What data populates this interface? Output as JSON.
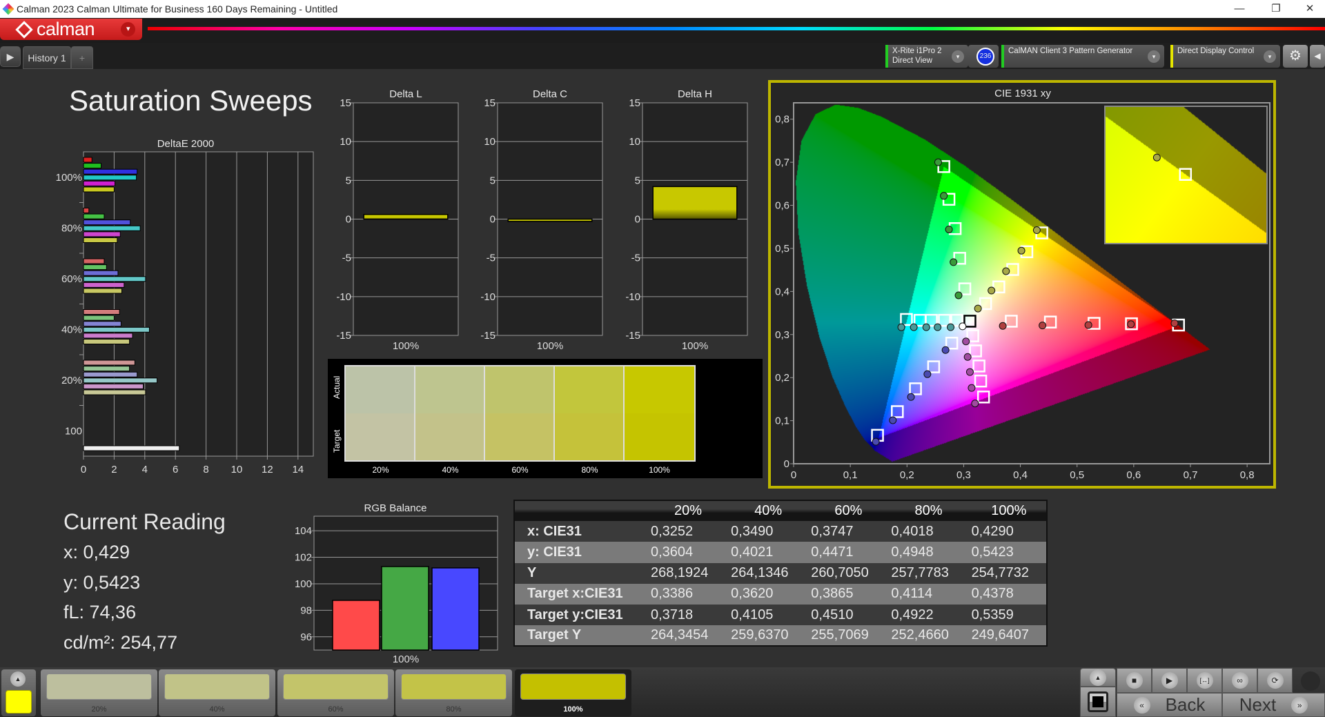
{
  "window": {
    "title": "Calman 2023 Calman Ultimate for Business 160 Days Remaining  - Untitled",
    "minimize": "—",
    "maximize": "❐",
    "close": "✕"
  },
  "header": {
    "brand": "calman",
    "menu_icon": "▾"
  },
  "tabs": {
    "play_icon": "▶",
    "items": [
      {
        "label": "History 1"
      }
    ],
    "add_label": "+"
  },
  "devices": {
    "meter": {
      "line1": "X-Rite i1Pro 2",
      "line2": "Direct View",
      "status_color": "#22cc22"
    },
    "meter_badge": "236",
    "generator": {
      "line1": "CalMAN Client 3 Pattern Generator",
      "status_color": "#22cc22"
    },
    "display": {
      "line1": "Direct Display Control",
      "status_color": "#e6e600"
    },
    "settings_icon": "⚙",
    "collapse_icon": "◀",
    "dropdown_icon": "▾"
  },
  "page_title": "Saturation Sweeps",
  "swatch_panel": {
    "actual_label": "Actual",
    "target_label": "Target",
    "items": [
      {
        "label": "20%",
        "actual": "#bcc3a8",
        "target": "#c3c3a4"
      },
      {
        "label": "40%",
        "actual": "#bec58f",
        "target": "#c3c28a"
      },
      {
        "label": "60%",
        "actual": "#bfc46c",
        "target": "#c5c264"
      },
      {
        "label": "80%",
        "actual": "#c2c63c",
        "target": "#c5c23a"
      },
      {
        "label": "100%",
        "actual": "#c7c800",
        "target": "#c5c400"
      }
    ]
  },
  "current_reading": {
    "title": "Current Reading",
    "lines": [
      "x: 0,429",
      "y: 0,5423",
      "fL: 74,36",
      "cd/m²: 254,77"
    ]
  },
  "table": {
    "columns": [
      "20%",
      "40%",
      "60%",
      "80%",
      "100%"
    ],
    "rows": [
      {
        "label": "x: CIE31",
        "values": [
          "0,3252",
          "0,3490",
          "0,3747",
          "0,4018",
          "0,4290"
        ]
      },
      {
        "label": "y: CIE31",
        "values": [
          "0,3604",
          "0,4021",
          "0,4471",
          "0,4948",
          "0,5423"
        ]
      },
      {
        "label": "Y",
        "values": [
          "268,1924",
          "264,1346",
          "260,7050",
          "257,7783",
          "254,7732"
        ]
      },
      {
        "label": "Target x:CIE31",
        "values": [
          "0,3386",
          "0,3620",
          "0,3865",
          "0,4114",
          "0,4378"
        ]
      },
      {
        "label": "Target y:CIE31",
        "values": [
          "0,3718",
          "0,4105",
          "0,4510",
          "0,4922",
          "0,5359"
        ]
      },
      {
        "label": "Target Y",
        "values": [
          "264,3454",
          "259,6370",
          "255,7069",
          "252,4660",
          "249,6407"
        ]
      }
    ]
  },
  "bottom": {
    "up_icon": "▲",
    "current_color": "#ffff00",
    "swatches": [
      {
        "label": "20%",
        "color": "#bdbf9e"
      },
      {
        "label": "40%",
        "color": "#c1c388"
      },
      {
        "label": "60%",
        "color": "#c3c46a"
      },
      {
        "label": "80%",
        "color": "#c3c348"
      },
      {
        "label": "100%",
        "color": "#c4c000",
        "selected": true
      }
    ],
    "controls": {
      "stop": "■",
      "play": "▶",
      "range": "[↔]",
      "loop": "∞",
      "refresh": "⟳",
      "back": "Back",
      "next": "Next",
      "back_icon": "«",
      "next_icon": "»"
    }
  },
  "chart_data": [
    {
      "id": "deltae",
      "type": "bar",
      "orientation": "horizontal",
      "title": "DeltaE 2000",
      "xlim": [
        0,
        15
      ],
      "xticks": [
        0,
        2,
        4,
        6,
        8,
        10,
        12,
        14
      ],
      "grid": true,
      "series_colors": [
        "#e02020",
        "#20c020",
        "#3030e0",
        "#20c8c8",
        "#d020d0",
        "#c8c820"
      ],
      "groups": [
        {
          "label": "100%",
          "values": [
            0.55,
            1.15,
            3.5,
            3.45,
            2.05,
            2.0
          ]
        },
        {
          "label": "80%",
          "values": [
            0.35,
            1.35,
            3.05,
            3.7,
            2.4,
            2.2
          ]
        },
        {
          "label": "60%",
          "values": [
            1.35,
            1.5,
            2.25,
            4.05,
            2.65,
            2.5
          ]
        },
        {
          "label": "40%",
          "values": [
            2.35,
            2.0,
            2.45,
            4.3,
            3.2,
            3.0
          ]
        },
        {
          "label": "20%",
          "values": [
            3.35,
            3.0,
            3.5,
            4.8,
            3.9,
            4.05
          ]
        },
        {
          "label": "100",
          "values": [
            6.25
          ],
          "color": "#f0f0f0"
        }
      ]
    },
    {
      "id": "deltaL",
      "type": "bar",
      "title": "Delta L",
      "categories": [
        "100%"
      ],
      "values": [
        0.6
      ],
      "ylim": [
        -15,
        15
      ],
      "yticks": [
        15,
        10,
        5,
        0,
        -5,
        -10,
        -15
      ],
      "color": "#c8c800"
    },
    {
      "id": "deltaC",
      "type": "bar",
      "title": "Delta C",
      "categories": [
        "100%"
      ],
      "values": [
        -0.3
      ],
      "ylim": [
        -15,
        15
      ],
      "yticks": [
        15,
        10,
        5,
        0,
        -5,
        -10,
        -15
      ],
      "color": "#c8c800"
    },
    {
      "id": "deltaH",
      "type": "bar",
      "title": "Delta H",
      "categories": [
        "100%"
      ],
      "values": [
        4.2
      ],
      "ylim": [
        -15,
        15
      ],
      "yticks": [
        15,
        10,
        5,
        0,
        -5,
        -10,
        -15
      ],
      "color": "#c8c800"
    },
    {
      "id": "rgb",
      "type": "bar",
      "title": "RGB Balance",
      "categories": [
        "100%"
      ],
      "series": [
        {
          "color": "#ff4a4a",
          "value": 98.75
        },
        {
          "color": "#45a845",
          "value": 101.3
        },
        {
          "color": "#4848ff",
          "value": 101.2
        }
      ],
      "ylim": [
        95,
        105.1
      ],
      "yticks": [
        96,
        98,
        100,
        102,
        104
      ]
    },
    {
      "id": "cie",
      "type": "scatter",
      "title": "CIE 1931 xy",
      "xlim": [
        0,
        0.84
      ],
      "ylim": [
        0,
        0.838
      ],
      "xticks": [
        {
          "v": 0,
          "l": "0"
        },
        {
          "v": 0.1,
          "l": "0,1"
        },
        {
          "v": 0.2,
          "l": "0,2"
        },
        {
          "v": 0.3,
          "l": "0,3"
        },
        {
          "v": 0.4,
          "l": "0,4"
        },
        {
          "v": 0.5,
          "l": "0,5"
        },
        {
          "v": 0.6,
          "l": "0,6"
        },
        {
          "v": 0.7,
          "l": "0,7"
        },
        {
          "v": 0.8,
          "l": "0,8"
        }
      ],
      "yticks": [
        {
          "v": 0,
          "l": "0"
        },
        {
          "v": 0.1,
          "l": "0,1"
        },
        {
          "v": 0.2,
          "l": "0,2"
        },
        {
          "v": 0.3,
          "l": "0,3"
        },
        {
          "v": 0.4,
          "l": "0,4"
        },
        {
          "v": 0.5,
          "l": "0,5"
        },
        {
          "v": 0.6,
          "l": "0,6"
        },
        {
          "v": 0.7,
          "l": "0,7"
        },
        {
          "v": 0.8,
          "l": "0,8"
        }
      ],
      "gamut_triangle": [
        [
          0.68,
          0.32
        ],
        [
          0.265,
          0.69
        ],
        [
          0.15,
          0.06
        ]
      ],
      "series": [
        {
          "color": "#3a9a3a",
          "measured": [
            [
              0.291,
              0.391
            ],
            [
              0.282,
              0.468
            ],
            [
              0.274,
              0.544
            ],
            [
              0.265,
              0.622
            ],
            [
              0.255,
              0.7
            ]
          ],
          "target": [
            [
              0.302,
              0.406
            ],
            [
              0.293,
              0.477
            ],
            [
              0.285,
              0.546
            ],
            [
              0.274,
              0.614
            ],
            [
              0.265,
              0.69
            ]
          ]
        },
        {
          "color": "#a8a848",
          "measured": [
            [
              0.3252,
              0.3604
            ],
            [
              0.349,
              0.4021
            ],
            [
              0.3747,
              0.4471
            ],
            [
              0.4018,
              0.4948
            ],
            [
              0.429,
              0.5423
            ]
          ],
          "target": [
            [
              0.3386,
              0.3718
            ],
            [
              0.362,
              0.4105
            ],
            [
              0.3865,
              0.451
            ],
            [
              0.4114,
              0.4922
            ],
            [
              0.4378,
              0.5359
            ]
          ]
        },
        {
          "color": "#4a9a9a",
          "measured": [
            [
              0.277,
              0.317
            ],
            [
              0.254,
              0.317
            ],
            [
              0.234,
              0.317
            ],
            [
              0.212,
              0.317
            ],
            [
              0.19,
              0.317
            ]
          ],
          "target": [
            [
              0.288,
              0.333
            ],
            [
              0.266,
              0.333
            ],
            [
              0.243,
              0.333
            ],
            [
              0.223,
              0.333
            ],
            [
              0.199,
              0.335
            ]
          ]
        },
        {
          "color": "#b04040",
          "measured": [
            [
              0.369,
              0.32
            ],
            [
              0.439,
              0.321
            ],
            [
              0.52,
              0.322
            ],
            [
              0.595,
              0.324
            ],
            [
              0.672,
              0.326
            ]
          ],
          "target": [
            [
              0.384,
              0.331
            ],
            [
              0.453,
              0.329
            ],
            [
              0.53,
              0.326
            ],
            [
              0.596,
              0.325
            ],
            [
              0.679,
              0.322
            ]
          ]
        },
        {
          "color": "#a04ca0",
          "measured": [
            [
              0.304,
              0.284
            ],
            [
              0.307,
              0.248
            ],
            [
              0.311,
              0.213
            ],
            [
              0.314,
              0.176
            ],
            [
              0.32,
              0.14
            ]
          ],
          "target": [
            [
              0.316,
              0.297
            ],
            [
              0.321,
              0.262
            ],
            [
              0.327,
              0.227
            ],
            [
              0.33,
              0.192
            ],
            [
              0.335,
              0.155
            ]
          ]
        },
        {
          "color": "#4a4ab0",
          "measured": [
            [
              0.268,
              0.264
            ],
            [
              0.236,
              0.208
            ],
            [
              0.207,
              0.155
            ],
            [
              0.175,
              0.101
            ],
            [
              0.145,
              0.051
            ]
          ],
          "target": [
            [
              0.279,
              0.28
            ],
            [
              0.247,
              0.225
            ],
            [
              0.215,
              0.174
            ],
            [
              0.183,
              0.121
            ],
            [
              0.148,
              0.066
            ]
          ]
        },
        {
          "color": "#ffffff",
          "measured": [
            [
              0.298,
              0.319
            ]
          ],
          "target": [
            [
              0.311,
              0.331
            ]
          ],
          "target_stroke": "#000000"
        }
      ],
      "inset": {
        "xlim": [
          0.4132,
          0.4627
        ],
        "ylim": [
          0.51,
          0.5614
        ],
        "measured": [
          0.429,
          0.5423
        ],
        "target": [
          0.4378,
          0.5359
        ]
      }
    }
  ]
}
